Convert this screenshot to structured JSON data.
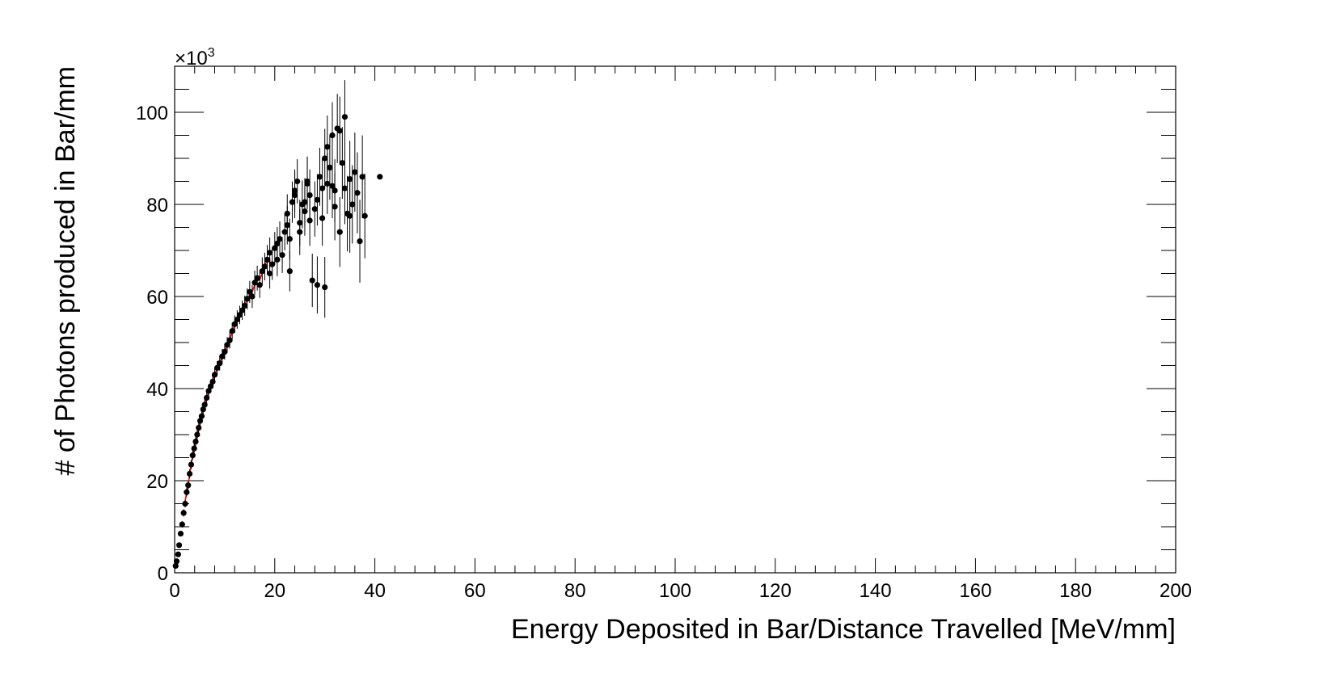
{
  "chart_data": {
    "type": "scatter",
    "title": "",
    "xlabel": "Energy Deposited in Bar/Distance Travelled [MeV/mm]",
    "ylabel": "# of Photons produced in Bar/mm",
    "y_multiplier_label": "×10",
    "y_multiplier_exp": "3",
    "xlim": [
      0,
      200
    ],
    "ylim": [
      0,
      110
    ],
    "x_ticks": [
      0,
      20,
      40,
      60,
      80,
      100,
      120,
      140,
      160,
      180,
      200
    ],
    "y_ticks": [
      0,
      20,
      40,
      60,
      80,
      100
    ],
    "grid": false,
    "colors": {
      "points": "#000000",
      "fit": "#ff0000"
    },
    "series": [
      {
        "kind": "points_with_errors",
        "points": [
          [
            0.2,
            1.5,
            0.4
          ],
          [
            0.4,
            2.5,
            0.5
          ],
          [
            0.7,
            4.0,
            0.5
          ],
          [
            0.9,
            6.0,
            0.6
          ],
          [
            1.2,
            8.5,
            0.6
          ],
          [
            1.5,
            10.5,
            0.7
          ],
          [
            1.8,
            13.0,
            0.8
          ],
          [
            2.1,
            15.0,
            0.8
          ],
          [
            2.4,
            17.5,
            0.9
          ],
          [
            2.7,
            19.0,
            0.9
          ],
          [
            3.0,
            21.5,
            1.0
          ],
          [
            3.3,
            23.5,
            1.0
          ],
          [
            3.6,
            25.5,
            1.0
          ],
          [
            3.9,
            27.0,
            1.1
          ],
          [
            4.2,
            28.5,
            1.1
          ],
          [
            4.5,
            30.0,
            1.2
          ],
          [
            4.8,
            31.5,
            1.2
          ],
          [
            5.1,
            33.0,
            1.2
          ],
          [
            5.4,
            34.0,
            1.3
          ],
          [
            5.7,
            35.5,
            1.3
          ],
          [
            6.0,
            36.5,
            1.3
          ],
          [
            6.4,
            38.0,
            1.4
          ],
          [
            6.8,
            39.5,
            1.4
          ],
          [
            7.2,
            40.5,
            1.4
          ],
          [
            7.6,
            41.5,
            1.5
          ],
          [
            8.0,
            43.0,
            1.5
          ],
          [
            8.5,
            44.5,
            1.5
          ],
          [
            9.0,
            45.5,
            1.6
          ],
          [
            9.5,
            47.0,
            1.6
          ],
          [
            10.0,
            48.0,
            1.7
          ],
          [
            10.5,
            49.5,
            1.7
          ],
          [
            11.0,
            50.5,
            1.8
          ],
          [
            11.5,
            52.5,
            1.8
          ],
          [
            12.0,
            54.0,
            1.9
          ],
          [
            12.5,
            55.0,
            2.0
          ],
          [
            13.0,
            56.0,
            2.0
          ],
          [
            13.5,
            57.0,
            2.1
          ],
          [
            14.0,
            58.0,
            2.2
          ],
          [
            14.5,
            59.5,
            2.3
          ],
          [
            15.0,
            61.0,
            2.4
          ],
          [
            15.5,
            60.0,
            2.5
          ],
          [
            16.0,
            63.0,
            2.6
          ],
          [
            16.5,
            64.0,
            2.7
          ],
          [
            17.0,
            62.5,
            2.8
          ],
          [
            17.5,
            65.5,
            3.0
          ],
          [
            18.0,
            66.5,
            3.0
          ],
          [
            18.5,
            68.0,
            3.2
          ],
          [
            19.0,
            69.5,
            3.3
          ],
          [
            19.5,
            67.0,
            3.4
          ],
          [
            20.0,
            70.5,
            3.5
          ],
          [
            20.5,
            71.5,
            3.6
          ],
          [
            21.0,
            72.5,
            3.8
          ],
          [
            21.5,
            69.0,
            3.9
          ],
          [
            22.0,
            74.0,
            4.0
          ],
          [
            22.5,
            75.5,
            4.2
          ],
          [
            23.0,
            65.5,
            4.4
          ],
          [
            23.5,
            80.5,
            4.5
          ],
          [
            24.0,
            83.0,
            4.6
          ],
          [
            24.5,
            85.0,
            4.8
          ],
          [
            25.0,
            76.0,
            5.0
          ],
          [
            25.5,
            80.0,
            5.2
          ],
          [
            26.0,
            78.5,
            5.3
          ],
          [
            26.5,
            84.5,
            5.5
          ],
          [
            27.0,
            82.0,
            5.6
          ],
          [
            27.5,
            63.5,
            5.8
          ],
          [
            28.0,
            79.0,
            6.0
          ],
          [
            28.5,
            62.5,
            6.2
          ],
          [
            29.0,
            86.0,
            6.3
          ],
          [
            29.5,
            83.5,
            6.5
          ],
          [
            30.0,
            62.0,
            6.6
          ],
          [
            30.5,
            92.5,
            6.8
          ],
          [
            31.0,
            88.0,
            7.0
          ],
          [
            31.5,
            95.0,
            7.2
          ],
          [
            32.0,
            79.5,
            7.3
          ],
          [
            32.5,
            96.5,
            7.5
          ],
          [
            33.0,
            74.0,
            7.6
          ],
          [
            33.5,
            89.0,
            7.8
          ],
          [
            34.0,
            99.0,
            8.0
          ],
          [
            34.5,
            78.0,
            8.2
          ],
          [
            35.0,
            85.5,
            8.3
          ],
          [
            35.5,
            80.0,
            8.5
          ],
          [
            36.0,
            87.0,
            8.6
          ],
          [
            36.5,
            82.5,
            8.8
          ],
          [
            37.0,
            72.0,
            9.0
          ],
          [
            37.5,
            86.0,
            9.0
          ],
          [
            38.0,
            77.5,
            9.2
          ],
          [
            41.0,
            86.0,
            0.0
          ],
          [
            24.0,
            82.0,
            5.0
          ],
          [
            26.0,
            80.5,
            5.2
          ],
          [
            28.5,
            81.0,
            5.6
          ],
          [
            30.0,
            90.0,
            6.4
          ],
          [
            31.5,
            84.0,
            7.0
          ],
          [
            33.0,
            96.0,
            7.4
          ],
          [
            22.5,
            78.0,
            4.2
          ],
          [
            25.0,
            74.0,
            5.0
          ],
          [
            27.0,
            76.5,
            5.5
          ],
          [
            29.5,
            77.0,
            6.0
          ],
          [
            32.0,
            83.0,
            6.8
          ],
          [
            35.0,
            77.5,
            8.0
          ],
          [
            20.5,
            68.0,
            3.6
          ],
          [
            19.0,
            65.0,
            3.3
          ],
          [
            23.0,
            72.5,
            4.4
          ],
          [
            26.5,
            85.0,
            5.4
          ],
          [
            30.5,
            84.5,
            6.6
          ],
          [
            34.0,
            83.5,
            7.8
          ]
        ]
      },
      {
        "kind": "fit_curve",
        "x_range": [
          2.0,
          19.5
        ]
      }
    ]
  }
}
